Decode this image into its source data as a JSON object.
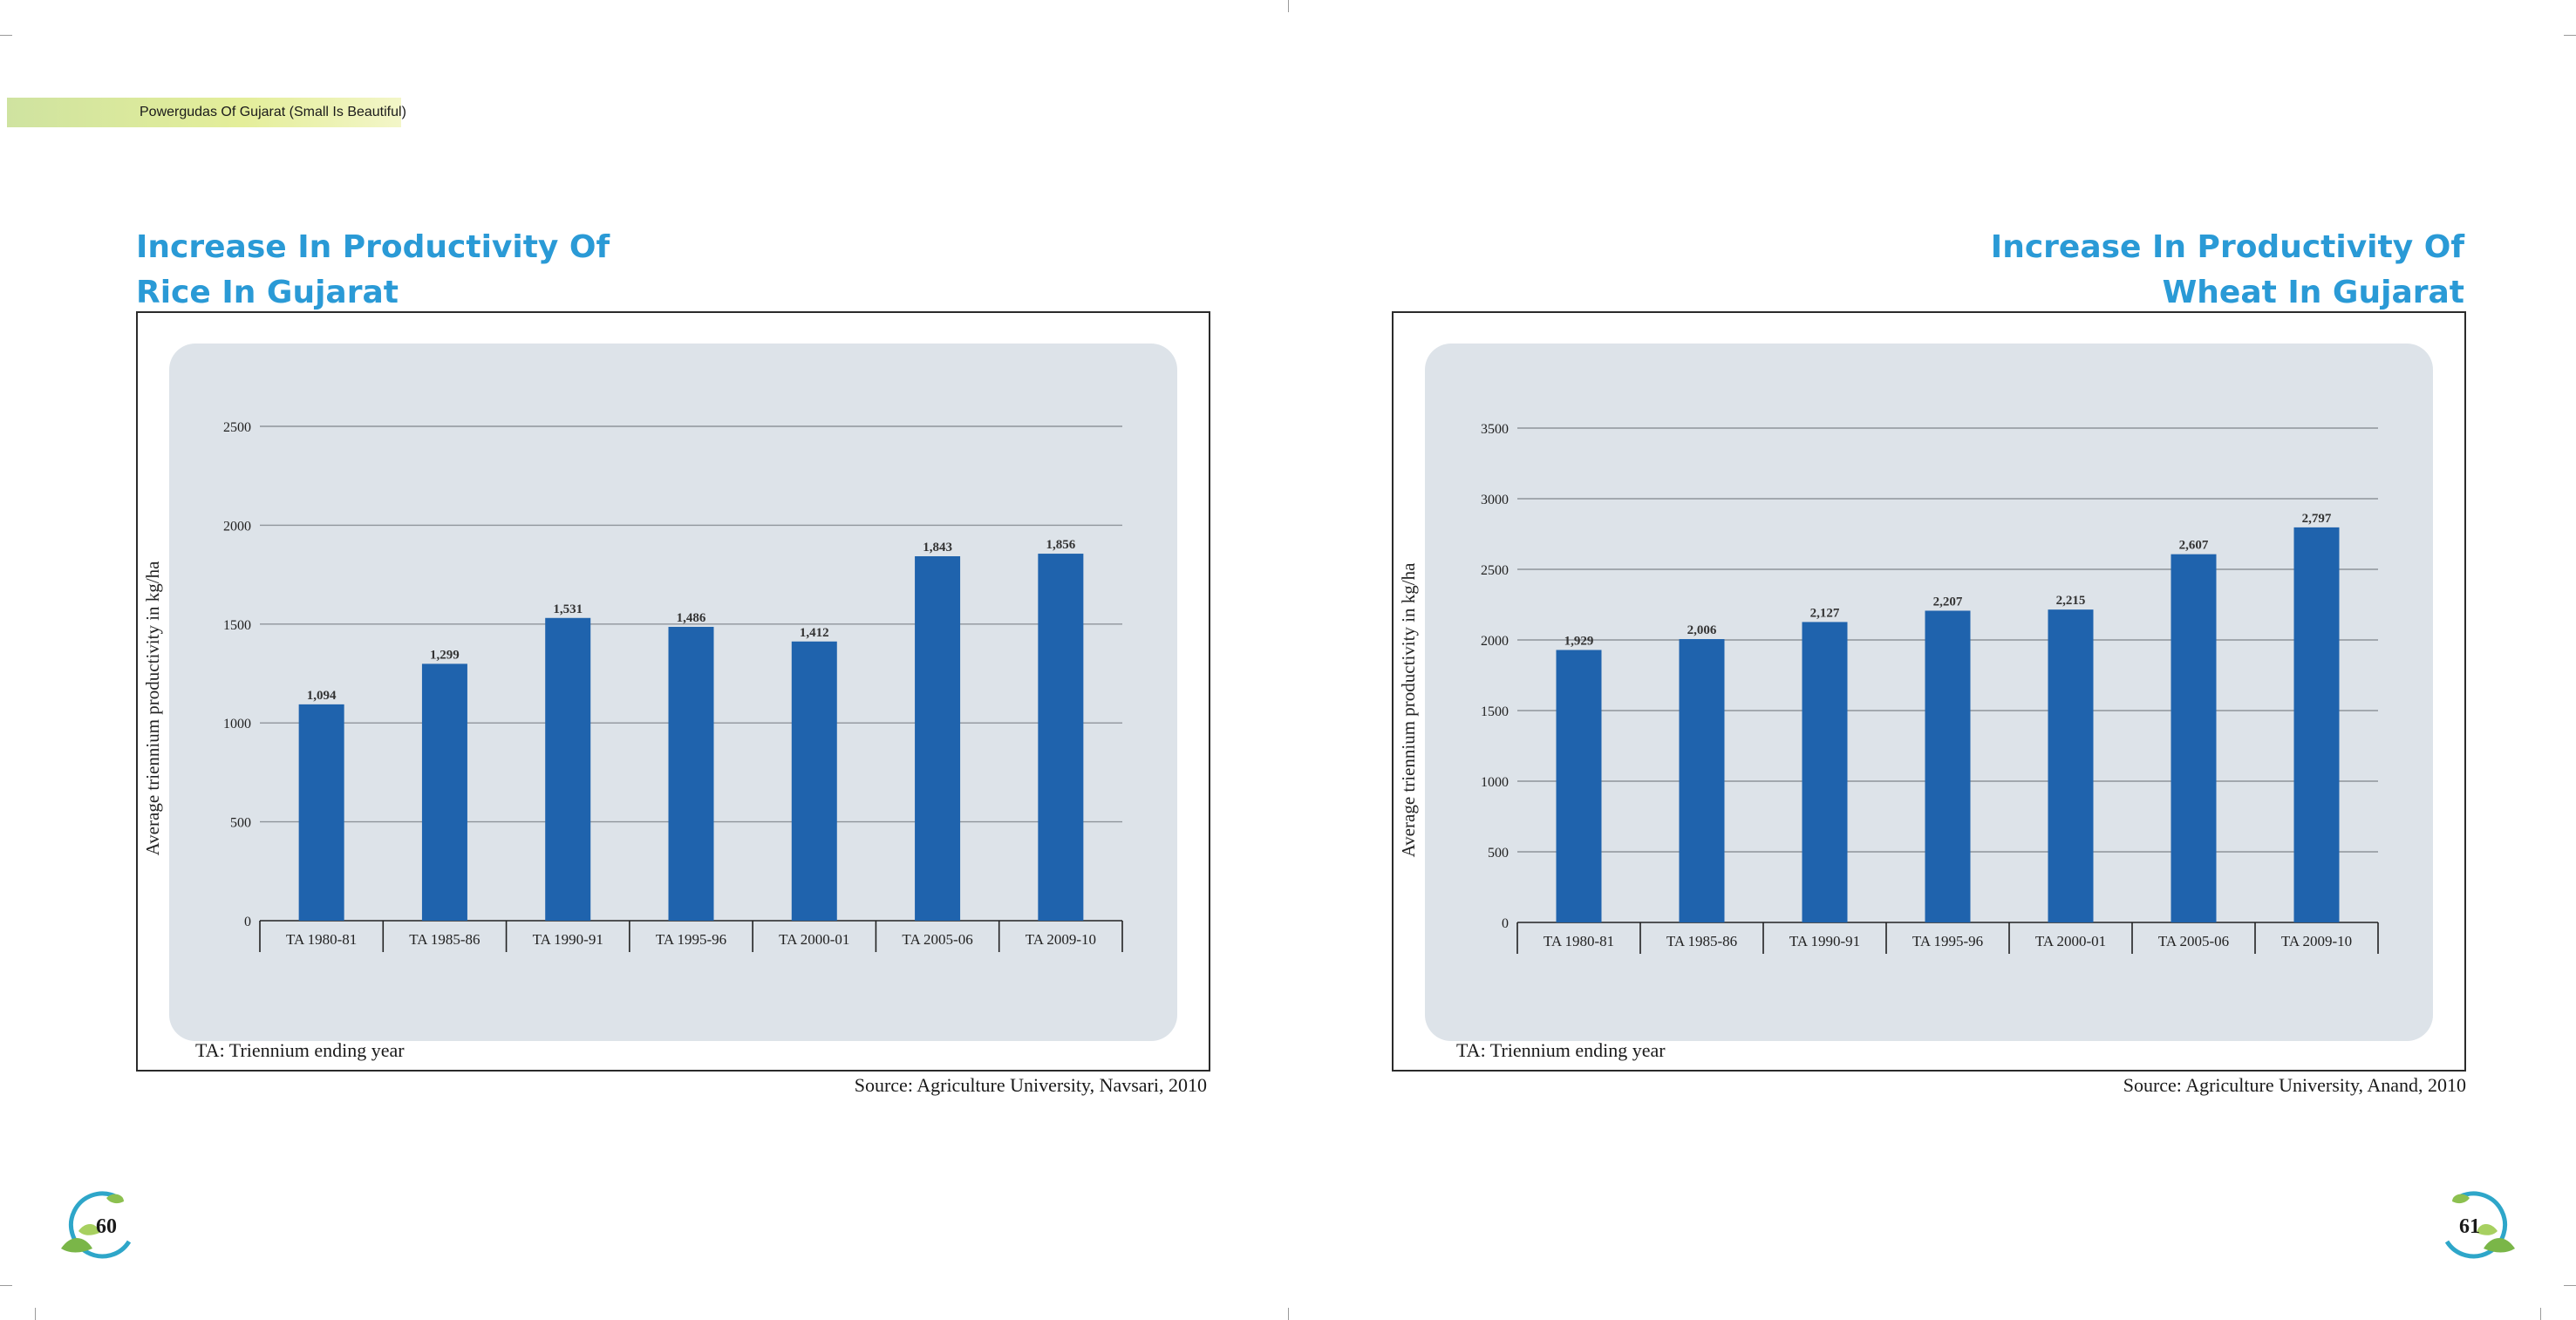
{
  "header": {
    "running_title": "Powergudas Of Gujarat (Small Is Beautiful)"
  },
  "pages": {
    "left_number": "60",
    "right_number": "61"
  },
  "colors": {
    "bar": "#1f63ad",
    "title": "#2a9ad6",
    "panel": "#dde3e9"
  },
  "charts": [
    {
      "title_line1": "Increase In Productivity Of",
      "title_line2": "Rice In Gujarat",
      "note": "TA: Triennium ending year",
      "source": "Source: Agriculture University, Navsari, 2010"
    },
    {
      "title_line1": "Increase In Productivity Of",
      "title_line2": "Wheat In Gujarat",
      "note": "TA: Triennium ending year",
      "source": "Source: Agriculture University, Anand, 2010"
    }
  ],
  "chart_data": [
    {
      "type": "bar",
      "title": "Increase In Productivity Of Rice In Gujarat",
      "categories": [
        "TA 1980-81",
        "TA 1985-86",
        "TA 1990-91",
        "TA 1995-96",
        "TA 2000-01",
        "TA 2005-06",
        "TA 2009-10"
      ],
      "values": [
        1094,
        1299,
        1531,
        1486,
        1412,
        1843,
        1856
      ],
      "value_labels": [
        "1,094",
        "1,299",
        "1,531",
        "1,486",
        "1,412",
        "1,843",
        "1,856"
      ],
      "ylabel": "Average triennium productivity in kg/ha",
      "xlabel": "",
      "ylim": [
        0,
        2500
      ],
      "yticks": [
        0,
        500,
        1000,
        1500,
        2000,
        2500
      ],
      "grid": true
    },
    {
      "type": "bar",
      "title": "Increase In Productivity Of Wheat In Gujarat",
      "categories": [
        "TA 1980-81",
        "TA 1985-86",
        "TA 1990-91",
        "TA 1995-96",
        "TA 2000-01",
        "TA 2005-06",
        "TA 2009-10"
      ],
      "values": [
        1929,
        2006,
        2127,
        2207,
        2215,
        2607,
        2797
      ],
      "value_labels": [
        "1,929",
        "2,006",
        "2,127",
        "2,207",
        "2,215",
        "2,607",
        "2,797"
      ],
      "ylabel": "Average triennium productivity in kg/ha",
      "xlabel": "",
      "ylim": [
        0,
        3500
      ],
      "yticks": [
        0,
        500,
        1000,
        1500,
        2000,
        2500,
        3000,
        3500
      ],
      "grid": true
    }
  ]
}
